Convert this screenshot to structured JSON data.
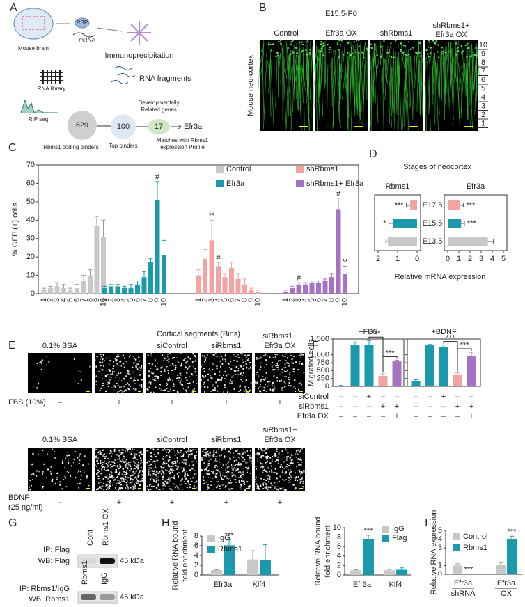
{
  "schematic": {
    "label": "A",
    "brain": "Mouse brain",
    "rbp": "RBP",
    "mrna": "mRNA",
    "ip": "Immunoprecipitation",
    "fragments": "RNA fragments",
    "library": "RNA library",
    "rip": "RIP seq",
    "binders": "629",
    "top": "100",
    "dev_count": "17",
    "target": "Efr3a",
    "coding": "Rbms1 coding binders",
    "top_label": "Top binders",
    "dev": [
      "Developmentally",
      "Related genes"
    ],
    "match": [
      "Matches with Rbms1",
      "expression Profile"
    ]
  },
  "imaging": {
    "label": "B",
    "stage": "E15.5-P0",
    "ylabel": "Mouse neo-cortex",
    "columns": [
      [
        "Control"
      ],
      [
        "Efr3a OX"
      ],
      [
        "shRbms1"
      ],
      [
        "shRbms1+",
        "Efr3a OX"
      ]
    ],
    "bins": [
      "10",
      "9",
      "8",
      "7",
      "6",
      "5",
      "4",
      "3",
      "2",
      "1"
    ]
  },
  "migration": {
    "label": "E",
    "rows": [
      {
        "headers": [
          [
            "0.1% BSA"
          ],
          null,
          [
            "siControl"
          ],
          [
            "siRbms1"
          ],
          [
            "siRbms1+",
            "Efr3a OX"
          ]
        ],
        "treatment": [
          "FBS (10%)"
        ],
        "signs": [
          "–",
          "+",
          "+",
          "+",
          "+"
        ]
      },
      {
        "headers": [
          [
            "0.1% BSA"
          ],
          null,
          [
            "siControl"
          ],
          [
            "siRbms1"
          ],
          [
            "siRbms1+",
            "Efr3a OX"
          ]
        ],
        "treatment": [
          "BDNF",
          "(25 ng/ml)"
        ],
        "signs": [
          "–",
          "+",
          "+",
          "+",
          "+"
        ]
      }
    ]
  },
  "blot": {
    "label": "G",
    "top": {
      "lanes": [
        "Cont",
        "Rbms1 OX"
      ],
      "ip": "IP: Flag",
      "wb": "WB: Flag",
      "size": "45 kDa"
    },
    "bottom": {
      "lanes": [
        "Rbms1",
        "IgG"
      ],
      "ip": "IP: Rbms1/IgG",
      "wb": "WB: Rbms1",
      "size": "45 kDa"
    }
  },
  "chart_data": [
    {
      "type": "bar",
      "label": "C",
      "ylabel": "% GFP (+) cells",
      "xlabel": "Cortical segments (Bins)",
      "categories": [
        "1",
        "2",
        "3",
        "4",
        "5",
        "6",
        "7",
        "8",
        "9",
        "10"
      ],
      "ylim": [
        0,
        70
      ],
      "yticks": [
        0,
        10,
        20,
        30,
        40,
        50,
        60,
        70
      ],
      "series": [
        {
          "name": "Control",
          "color": "#c8c8c8",
          "values": [
            2,
            3,
            4,
            3,
            2,
            3,
            7,
            10,
            37,
            31
          ],
          "errors": [
            1,
            1,
            2,
            2,
            1,
            2,
            3,
            3,
            5,
            9
          ],
          "annotations": [
            null,
            null,
            null,
            null,
            null,
            null,
            null,
            null,
            null,
            null
          ]
        },
        {
          "name": "Efr3a",
          "color": "#1a9aaa",
          "values": [
            3,
            4,
            4,
            3,
            3,
            5,
            9,
            17,
            51,
            21
          ],
          "errors": [
            1,
            1,
            1,
            1,
            2,
            2,
            3,
            2,
            10,
            8
          ],
          "annotations": [
            null,
            null,
            null,
            null,
            null,
            null,
            null,
            null,
            "#",
            null
          ]
        },
        {
          "name": "shRbms1",
          "color": "#f4a3a3",
          "values": [
            10,
            19,
            29,
            15,
            9,
            14,
            8,
            5,
            2,
            1
          ],
          "errors": [
            3,
            5,
            11,
            2,
            2,
            3,
            3,
            3,
            1,
            1
          ],
          "annotations": [
            null,
            null,
            "**",
            "#",
            null,
            null,
            null,
            null,
            null,
            null
          ]
        },
        {
          "name": "shRbms1+ Efr3a",
          "color": "#a673c4",
          "values": [
            1,
            3,
            5,
            5,
            6,
            6,
            7,
            9,
            46,
            11
          ],
          "errors": [
            1,
            1,
            1,
            1,
            1,
            1,
            1,
            2,
            6,
            4
          ],
          "annotations": [
            null,
            null,
            "#",
            null,
            null,
            null,
            null,
            null,
            "#",
            "**"
          ]
        }
      ]
    },
    {
      "type": "hbar",
      "label": "D",
      "title": "Stages of neocortex",
      "xlabel": "Relative mRNA expression",
      "categories": [
        "E17.5",
        "E15.5",
        "E13.5"
      ],
      "colors": [
        "#f4a3a3",
        "#1a9aaa",
        "#c8c8c8"
      ],
      "panels": [
        {
          "title": "Rbms1",
          "values": [
            0.35,
            1.25,
            1.5
          ],
          "errors": [
            0.2,
            0.2,
            0.1
          ],
          "annotations": [
            "***",
            "*",
            null
          ],
          "xlim": [
            2,
            0
          ],
          "xticks": [
            2,
            1,
            0
          ]
        },
        {
          "title": "Efr3a",
          "values": [
            1.1,
            1.2,
            3.6
          ],
          "errors": [
            0.3,
            0.3,
            0.5
          ],
          "annotations": [
            "***",
            "***",
            null
          ],
          "xlim": [
            0,
            5
          ],
          "xticks": [
            0,
            1,
            2,
            3,
            4,
            5
          ]
        }
      ]
    },
    {
      "type": "bar",
      "label": "F",
      "ylabel": "Migrated cells",
      "ylim": [
        0,
        1500
      ],
      "yticks": [
        0,
        250,
        500,
        750,
        {
          "value": 1000,
          "label": "1,000"
        },
        {
          "value": 1500,
          "label": "1,500"
        }
      ],
      "colors": [
        "#1a9aaa",
        "#1a9aaa",
        "#1a9aaa",
        "#f4a3a3",
        "#a673c4"
      ],
      "conditions": [
        {
          "name": "siControl",
          "signs": [
            "–",
            "–",
            "+",
            "–",
            "–"
          ]
        },
        {
          "name": "siRbms1",
          "signs": [
            "–",
            "–",
            "–",
            "+",
            "+"
          ]
        },
        {
          "name": "Efr3a OX",
          "signs": [
            "–",
            "–",
            "–",
            "–",
            "+"
          ]
        }
      ],
      "panels": [
        {
          "title": "+FBS",
          "values": [
            20,
            1300,
            1320,
            330,
            790
          ],
          "errors": [
            10,
            110,
            130,
            80,
            40
          ],
          "brackets": [
            "***",
            "***"
          ]
        },
        {
          "title": "+BDNF",
          "values": [
            170,
            1300,
            1250,
            380,
            960
          ],
          "errors": [
            40,
            30,
            60,
            50,
            120
          ],
          "brackets": [
            "***",
            "***"
          ]
        }
      ]
    },
    {
      "type": "bar",
      "label": "H",
      "ylabel": [
        "Relative RNA bound",
        "fold enrichment"
      ],
      "categories": [
        "Efr3a",
        "Klf4"
      ],
      "ylim": [
        0,
        8
      ],
      "yticks": [
        0,
        2,
        4,
        6,
        8
      ],
      "series": [
        {
          "name": "IgG",
          "color": "#c8c8c8",
          "values": [
            1,
            3.2
          ],
          "errors": [
            0.05,
            1.8
          ],
          "annotations": [
            null,
            null
          ]
        },
        {
          "name": "Rbms1",
          "color": "#1a9aaa",
          "values": [
            6.1,
            3.1
          ],
          "errors": [
            1.1,
            3.1
          ],
          "annotations": [
            "***",
            null
          ]
        }
      ]
    },
    {
      "type": "bar",
      "ylabel": [
        "Relative RNA bound",
        "fold enrichment"
      ],
      "categories": [
        "Efr3a",
        "Klf4"
      ],
      "ylim": [
        0,
        10
      ],
      "yticks": [
        0,
        2,
        4,
        6,
        8,
        10
      ],
      "series": [
        {
          "name": "IgG",
          "color": "#c8c8c8",
          "values": [
            1,
            1
          ],
          "errors": [
            0.1,
            0.15
          ],
          "annotations": [
            null,
            null
          ]
        },
        {
          "name": "Flag",
          "color": "#1a9aaa",
          "values": [
            7.5,
            1.1
          ],
          "errors": [
            0.9,
            0.4
          ],
          "annotations": [
            "***",
            null
          ]
        }
      ]
    },
    {
      "type": "bar",
      "label": "I",
      "ylabel": [
        "Relative RNA expression"
      ],
      "categories": [
        "Efr3a",
        "Efr3a"
      ],
      "groups": [
        "shRNA",
        "OX"
      ],
      "ylim": [
        0,
        5
      ],
      "yticks": [
        0,
        1,
        3,
        4,
        5
      ],
      "series": [
        {
          "name": "Control",
          "color": "#c8c8c8",
          "values": [
            1.0,
            1.05
          ],
          "errors": [
            0.2,
            0.25
          ],
          "annotations": [
            null,
            null
          ]
        },
        {
          "name": "Rbms1",
          "color": "#1a9aaa",
          "values": [
            0.03,
            4.05
          ],
          "errors": [
            0.01,
            0.3
          ],
          "annotations": [
            "***",
            "***"
          ]
        }
      ]
    }
  ]
}
